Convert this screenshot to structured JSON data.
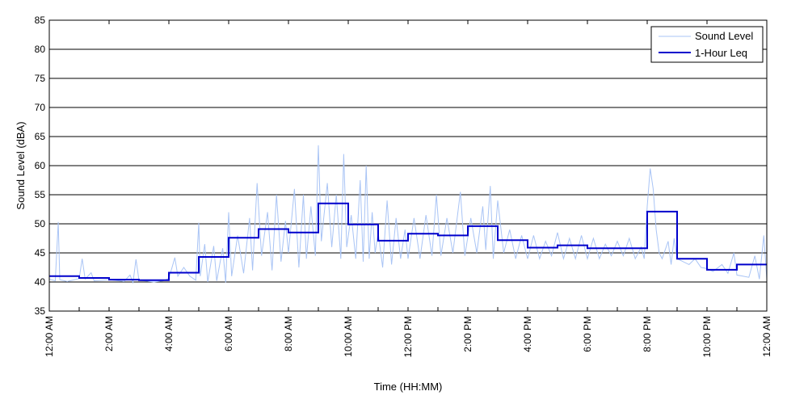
{
  "chart_data": {
    "type": "line",
    "xlabel": "Time (HH:MM)",
    "ylabel": "Sound Level (dBA)",
    "xlim": [
      0,
      24
    ],
    "ylim": [
      35,
      85
    ],
    "yticks": [
      35,
      40,
      45,
      50,
      55,
      60,
      65,
      70,
      75,
      80,
      85
    ],
    "xticks": [
      0,
      2,
      4,
      6,
      8,
      10,
      12,
      14,
      16,
      18,
      20,
      22,
      24
    ],
    "xtick_labels": [
      "12:00 AM",
      "2:00 AM",
      "4:00 AM",
      "6:00 AM",
      "8:00 AM",
      "10:00 AM",
      "12:00 PM",
      "2:00 PM",
      "4:00 PM",
      "6:00 PM",
      "8:00 PM",
      "10:00 PM",
      "12:00 AM"
    ],
    "grid": "horizontal",
    "legend_position": "top-right",
    "colors": {
      "sound_level": "#a9c4f5",
      "leq": "#0000cc"
    },
    "series": [
      {
        "name": "Sound Level",
        "points": [
          [
            0.0,
            40.5
          ],
          [
            0.2,
            40.2
          ],
          [
            0.3,
            50.3
          ],
          [
            0.35,
            40.4
          ],
          [
            0.6,
            40.1
          ],
          [
            1.0,
            40.6
          ],
          [
            1.1,
            44.0
          ],
          [
            1.2,
            40.5
          ],
          [
            1.4,
            41.6
          ],
          [
            1.5,
            40.2
          ],
          [
            2.0,
            40.4
          ],
          [
            2.5,
            40.1
          ],
          [
            2.7,
            41.2
          ],
          [
            2.8,
            39.9
          ],
          [
            2.9,
            43.9
          ],
          [
            3.0,
            40.3
          ],
          [
            3.5,
            40.0
          ],
          [
            3.8,
            40.2
          ],
          [
            4.0,
            40.6
          ],
          [
            4.2,
            44.2
          ],
          [
            4.3,
            41.0
          ],
          [
            4.5,
            42.5
          ],
          [
            4.7,
            41.0
          ],
          [
            4.9,
            40.3
          ],
          [
            5.0,
            50.2
          ],
          [
            5.05,
            41.0
          ],
          [
            5.2,
            46.5
          ],
          [
            5.3,
            40.0
          ],
          [
            5.5,
            46.2
          ],
          [
            5.6,
            40.2
          ],
          [
            5.8,
            45.8
          ],
          [
            5.9,
            39.9
          ],
          [
            6.0,
            52.0
          ],
          [
            6.1,
            41.0
          ],
          [
            6.3,
            48.0
          ],
          [
            6.5,
            41.5
          ],
          [
            6.7,
            51.0
          ],
          [
            6.8,
            42.0
          ],
          [
            6.95,
            57.0
          ],
          [
            7.1,
            44.5
          ],
          [
            7.3,
            52.0
          ],
          [
            7.45,
            42.0
          ],
          [
            7.6,
            55.0
          ],
          [
            7.75,
            43.5
          ],
          [
            7.9,
            50.5
          ],
          [
            8.0,
            45.0
          ],
          [
            8.2,
            56.0
          ],
          [
            8.35,
            42.5
          ],
          [
            8.5,
            55.0
          ],
          [
            8.6,
            44.0
          ],
          [
            8.75,
            53.0
          ],
          [
            8.9,
            44.5
          ],
          [
            9.0,
            63.5
          ],
          [
            9.1,
            47.0
          ],
          [
            9.3,
            57.0
          ],
          [
            9.45,
            46.0
          ],
          [
            9.6,
            55.0
          ],
          [
            9.75,
            44.0
          ],
          [
            9.85,
            62.0
          ],
          [
            9.95,
            46.0
          ],
          [
            10.1,
            51.5
          ],
          [
            10.25,
            44.0
          ],
          [
            10.4,
            57.5
          ],
          [
            10.5,
            43.5
          ],
          [
            10.6,
            60.0
          ],
          [
            10.7,
            44.0
          ],
          [
            10.8,
            52.0
          ],
          [
            10.9,
            45.0
          ],
          [
            11.0,
            48.5
          ],
          [
            11.15,
            42.5
          ],
          [
            11.3,
            54.0
          ],
          [
            11.45,
            43.0
          ],
          [
            11.6,
            51.0
          ],
          [
            11.75,
            44.0
          ],
          [
            11.9,
            49.0
          ],
          [
            12.0,
            44.0
          ],
          [
            12.2,
            51.0
          ],
          [
            12.4,
            44.0
          ],
          [
            12.6,
            51.5
          ],
          [
            12.8,
            44.5
          ],
          [
            12.95,
            55.0
          ],
          [
            13.1,
            44.5
          ],
          [
            13.3,
            51.0
          ],
          [
            13.5,
            45.0
          ],
          [
            13.75,
            55.5
          ],
          [
            13.9,
            44.5
          ],
          [
            14.1,
            51.0
          ],
          [
            14.3,
            45.0
          ],
          [
            14.5,
            53.0
          ],
          [
            14.6,
            45.5
          ],
          [
            14.75,
            56.5
          ],
          [
            14.85,
            44.0
          ],
          [
            15.0,
            54.0
          ],
          [
            15.2,
            45.0
          ],
          [
            15.4,
            49.0
          ],
          [
            15.6,
            44.0
          ],
          [
            15.8,
            48.0
          ],
          [
            16.0,
            44.0
          ],
          [
            16.2,
            48.0
          ],
          [
            16.4,
            44.0
          ],
          [
            16.6,
            47.0
          ],
          [
            16.8,
            44.5
          ],
          [
            17.0,
            48.5
          ],
          [
            17.2,
            44.0
          ],
          [
            17.4,
            47.5
          ],
          [
            17.6,
            44.0
          ],
          [
            17.8,
            48.0
          ],
          [
            18.0,
            44.0
          ],
          [
            18.2,
            47.5
          ],
          [
            18.4,
            44.0
          ],
          [
            18.6,
            46.5
          ],
          [
            18.8,
            44.5
          ],
          [
            19.0,
            47.0
          ],
          [
            19.2,
            44.5
          ],
          [
            19.4,
            47.5
          ],
          [
            19.6,
            44.0
          ],
          [
            19.8,
            46.0
          ],
          [
            19.9,
            44.0
          ],
          [
            20.0,
            53.0
          ],
          [
            20.1,
            59.5
          ],
          [
            20.2,
            56.0
          ],
          [
            20.3,
            49.0
          ],
          [
            20.4,
            45.0
          ],
          [
            20.5,
            44.0
          ],
          [
            20.7,
            47.0
          ],
          [
            20.8,
            43.0
          ],
          [
            20.9,
            47.5
          ],
          [
            21.0,
            44.0
          ],
          [
            21.2,
            43.5
          ],
          [
            21.4,
            43.0
          ],
          [
            21.6,
            44.0
          ],
          [
            21.8,
            42.5
          ],
          [
            22.0,
            42.3
          ],
          [
            22.2,
            41.8
          ],
          [
            22.5,
            43.0
          ],
          [
            22.7,
            41.5
          ],
          [
            22.9,
            45.0
          ],
          [
            23.0,
            41.2
          ],
          [
            23.2,
            41.0
          ],
          [
            23.4,
            40.8
          ],
          [
            23.6,
            44.5
          ],
          [
            23.75,
            40.5
          ],
          [
            23.9,
            48.0
          ],
          [
            24.0,
            40.5
          ]
        ]
      },
      {
        "name": "1-Hour Leq",
        "step": "post",
        "x": [
          0,
          1,
          2,
          3,
          4,
          5,
          6,
          7,
          8,
          9,
          10,
          11,
          12,
          13,
          14,
          15,
          16,
          17,
          18,
          19,
          20,
          21,
          22,
          23,
          24
        ],
        "values": [
          41.0,
          40.7,
          40.4,
          40.3,
          41.6,
          44.3,
          47.6,
          49.1,
          48.5,
          53.5,
          49.9,
          47.1,
          48.3,
          48.0,
          49.6,
          47.2,
          45.9,
          46.3,
          45.8,
          45.8,
          52.1,
          44.0,
          42.1,
          43.0,
          43.0
        ]
      }
    ]
  }
}
